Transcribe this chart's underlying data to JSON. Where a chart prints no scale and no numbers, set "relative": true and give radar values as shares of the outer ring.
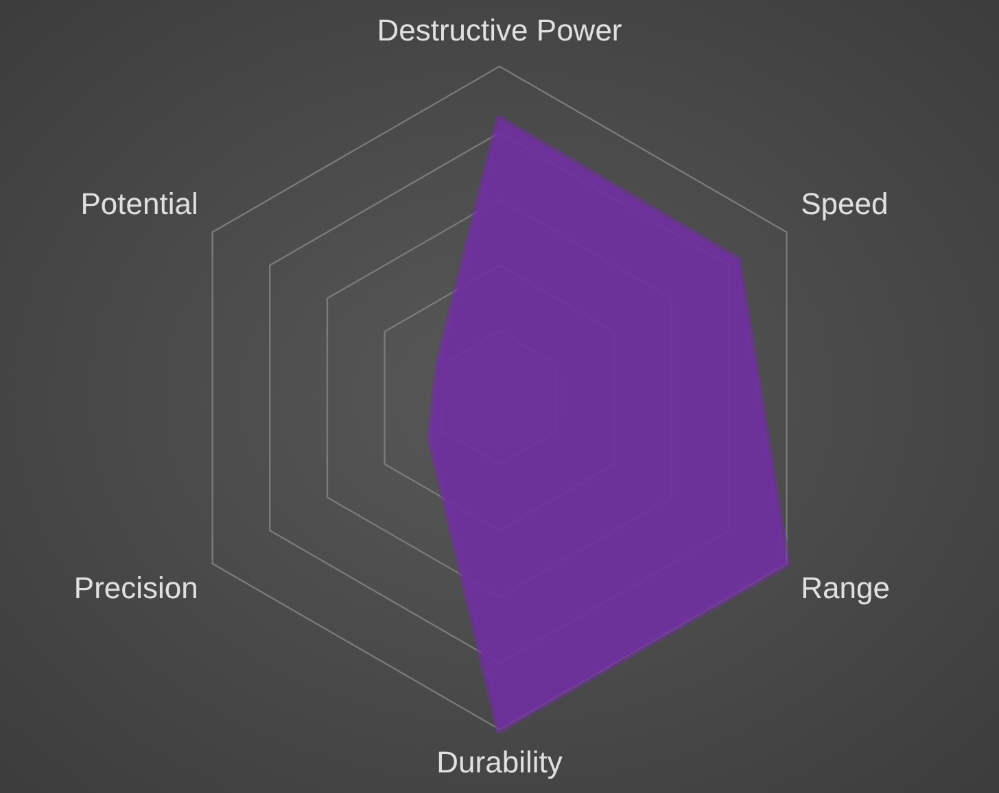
{
  "chart_data": {
    "type": "radar",
    "categories": [
      "Destructive Power",
      "Speed",
      "Range",
      "Durability",
      "Precision",
      "Potential"
    ],
    "series": [
      {
        "color": "#7030a0",
        "values": [
          0.84,
          0.83,
          1,
          1,
          0.24,
          0.21
        ]
      }
    ],
    "relative": true,
    "grid": true,
    "marker": "none"
  }
}
